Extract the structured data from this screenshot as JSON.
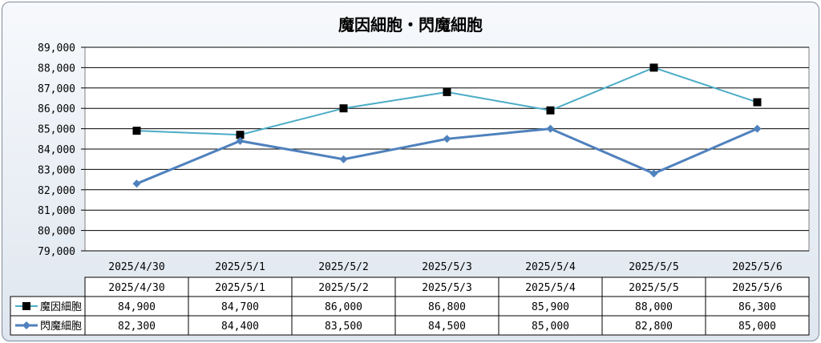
{
  "chart_data": {
    "type": "line",
    "title": "魔因細胞・閃魔細胞",
    "categories": [
      "2025/4/30",
      "2025/5/1",
      "2025/5/2",
      "2025/5/3",
      "2025/5/4",
      "2025/5/5",
      "2025/5/6"
    ],
    "series": [
      {
        "name": "魔因細胞",
        "values": [
          84900,
          84700,
          86000,
          86800,
          85900,
          88000,
          86300
        ],
        "color": "#4bacc6",
        "marker": "square",
        "marker_color": "#000000"
      },
      {
        "name": "閃魔細胞",
        "values": [
          82300,
          84400,
          83500,
          84500,
          85000,
          82800,
          85000
        ],
        "color": "#4f81bd",
        "marker": "diamond",
        "marker_color": "#4f81bd"
      }
    ],
    "ylim": [
      79000,
      89000
    ],
    "ytick_step": 1000,
    "ytick_labels": [
      "79,000",
      "80,000",
      "81,000",
      "82,000",
      "83,000",
      "84,000",
      "85,000",
      "86,000",
      "87,000",
      "88,000",
      "89,000"
    ],
    "grid": true,
    "legend": "data-table",
    "table_values": [
      [
        "84,900",
        "84,700",
        "86,000",
        "86,800",
        "85,900",
        "88,000",
        "86,300"
      ],
      [
        "82,300",
        "84,400",
        "83,500",
        "84,500",
        "85,000",
        "82,800",
        "85,000"
      ]
    ]
  }
}
